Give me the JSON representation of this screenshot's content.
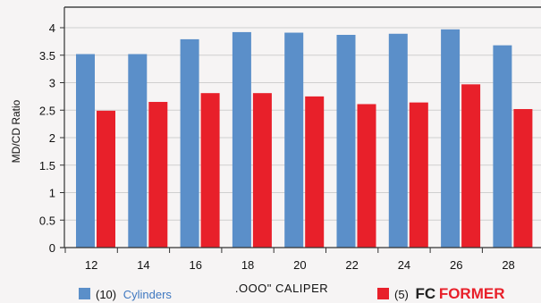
{
  "chart_data": {
    "type": "bar",
    "title": "",
    "xlabel": ".OOO\" CALIPER",
    "ylabel": "MD/CD Ratio",
    "categories": [
      "12",
      "14",
      "16",
      "18",
      "20",
      "22",
      "24",
      "26",
      "28"
    ],
    "ylim": [
      0,
      4
    ],
    "yticks": [
      "0",
      "0.5",
      "1",
      "1.5",
      "2",
      "2.5",
      "3",
      "3.5",
      "4"
    ],
    "grid": true,
    "legend_position": "bottom",
    "series": [
      {
        "name": "(10) Cylinders",
        "legend_prefix": "(10)",
        "legend_label": "Cylinders",
        "color": "#5b8fc9",
        "values": [
          3.52,
          3.52,
          3.79,
          3.92,
          3.91,
          3.87,
          3.89,
          3.97,
          3.68
        ]
      },
      {
        "name": "(5) FCFORMER",
        "legend_prefix": "(5)",
        "legend_brand_a": "FC",
        "legend_brand_b": "FORMER",
        "color": "#e8202a",
        "values": [
          2.49,
          2.65,
          2.81,
          2.81,
          2.75,
          2.61,
          2.64,
          2.97,
          2.52
        ]
      }
    ],
    "colors": {
      "text": "#111111",
      "grid": "#cfcfcf",
      "axis": "#333333",
      "brand_dark": "#222222",
      "brand_red": "#e8202a",
      "legend_blue": "#3f78c0"
    }
  }
}
